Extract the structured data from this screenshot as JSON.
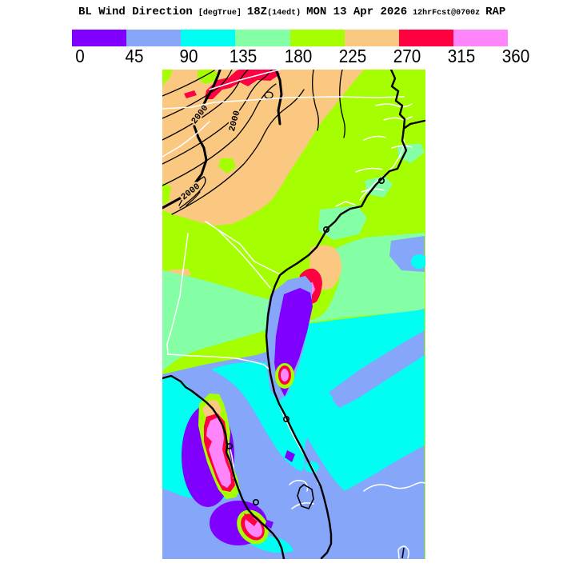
{
  "header": {
    "product": "BL Wind Direction",
    "units": "[degTrue]",
    "time_zulu": "18Z",
    "time_local": "(14edt)",
    "date": "MON 13 Apr 2026",
    "forecast": "12hrFcst@0700z",
    "model": "RAP"
  },
  "scale": {
    "tick_labels": [
      "0",
      "45",
      "90",
      "135",
      "180",
      "225",
      "270",
      "315",
      "360"
    ],
    "order": [
      "purple",
      "periwinkle",
      "cyan",
      "mint",
      "chartreuse",
      "tan",
      "red",
      "pink"
    ],
    "colors": {
      "purple": "#7F00FF",
      "periwinkle": "#85A6F9",
      "cyan": "#00FFF2",
      "mint": "#85FFA5",
      "chartreuse": "#A5FF00",
      "tan": "#FBC882",
      "red": "#FF0040",
      "pink": "#FF86FA"
    }
  },
  "map": {
    "contour_label": "2000",
    "line_colors": {
      "coastline": "#000000",
      "state_border": "#FFFFFF",
      "contour": "#000000"
    }
  }
}
